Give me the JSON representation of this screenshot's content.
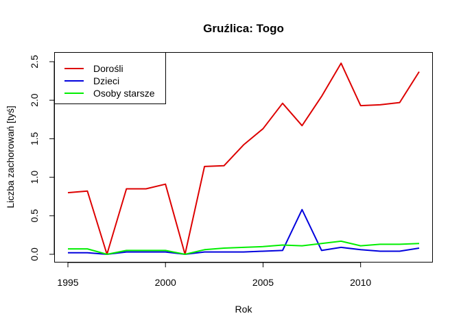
{
  "chart_data": {
    "type": "line",
    "title": "Gruźlica: Togo",
    "xlabel": "Rok",
    "ylabel": "Liczba zachorowań [tyś]",
    "xlim": [
      1995,
      2013
    ],
    "ylim": [
      0,
      2.5
    ],
    "x_ticks": [
      1995,
      2000,
      2005,
      2010
    ],
    "y_ticks": [
      0.0,
      0.5,
      1.0,
      1.5,
      2.0,
      2.5
    ],
    "x_tick_labels": [
      "1995",
      "2000",
      "2005",
      "2010"
    ],
    "y_tick_labels": [
      "0.0",
      "0.5",
      "1.0",
      "1.5",
      "2.0",
      "2.5"
    ],
    "grid": false,
    "legend_position": "top-left",
    "x": [
      1995,
      1996,
      1997,
      1998,
      1999,
      2000,
      2001,
      2002,
      2003,
      2004,
      2005,
      2006,
      2007,
      2008,
      2009,
      2010,
      2011,
      2012,
      2013
    ],
    "series": [
      {
        "name": "Dorośli",
        "color": "#dd0000",
        "values": [
          0.8,
          0.82,
          0.0,
          0.85,
          0.85,
          0.91,
          0.0,
          1.14,
          1.15,
          1.42,
          1.63,
          1.96,
          1.67,
          2.05,
          2.48,
          1.93,
          1.94,
          1.97,
          2.37
        ]
      },
      {
        "name": "Dzieci",
        "color": "#0000dd",
        "values": [
          0.02,
          0.02,
          0.0,
          0.03,
          0.03,
          0.03,
          0.0,
          0.03,
          0.03,
          0.03,
          0.04,
          0.05,
          0.58,
          0.05,
          0.09,
          0.06,
          0.04,
          0.04,
          0.08
        ]
      },
      {
        "name": "Osoby starsze",
        "color": "#00ee00",
        "values": [
          0.07,
          0.07,
          0.0,
          0.05,
          0.05,
          0.05,
          0.0,
          0.06,
          0.08,
          0.09,
          0.1,
          0.12,
          0.11,
          0.14,
          0.17,
          0.11,
          0.13,
          0.13,
          0.14
        ]
      }
    ]
  }
}
